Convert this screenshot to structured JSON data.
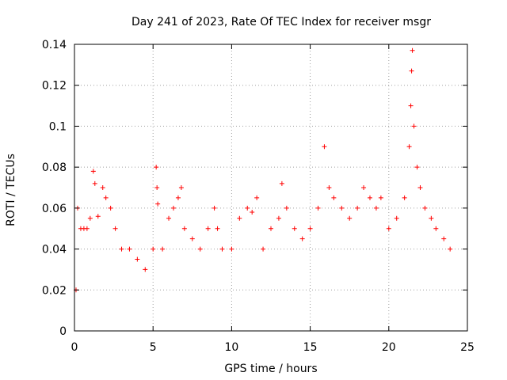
{
  "chart_data": {
    "type": "scatter",
    "title": "Day 241 of 2023, Rate Of TEC Index for receiver msgr",
    "xlabel": "GPS time / hours",
    "ylabel": "ROTI / TECUs",
    "xlim": [
      0,
      25
    ],
    "ylim": [
      0,
      0.14
    ],
    "x_ticks": [
      "0",
      "5",
      "10",
      "15",
      "20",
      "25"
    ],
    "y_ticks": [
      "0",
      "0.02",
      "0.04",
      "0.06",
      "0.08",
      "0.1",
      "0.12",
      "0.14"
    ],
    "grid": true,
    "marker": "+",
    "series": [
      {
        "name": "ROTI",
        "color": "#ff0000",
        "points": [
          [
            0.1,
            0.02
          ],
          [
            0.2,
            0.06
          ],
          [
            0.4,
            0.05
          ],
          [
            0.6,
            0.05
          ],
          [
            0.8,
            0.05
          ],
          [
            1.0,
            0.055
          ],
          [
            1.2,
            0.078
          ],
          [
            1.3,
            0.072
          ],
          [
            1.5,
            0.056
          ],
          [
            1.8,
            0.07
          ],
          [
            2.0,
            0.065
          ],
          [
            2.3,
            0.06
          ],
          [
            2.6,
            0.05
          ],
          [
            3.0,
            0.04
          ],
          [
            3.5,
            0.04
          ],
          [
            4.0,
            0.035
          ],
          [
            4.5,
            0.03
          ],
          [
            5.0,
            0.04
          ],
          [
            5.2,
            0.08
          ],
          [
            5.25,
            0.07
          ],
          [
            5.3,
            0.062
          ],
          [
            5.6,
            0.04
          ],
          [
            6.0,
            0.055
          ],
          [
            6.3,
            0.06
          ],
          [
            6.6,
            0.065
          ],
          [
            6.8,
            0.07
          ],
          [
            7.0,
            0.05
          ],
          [
            7.5,
            0.045
          ],
          [
            8.0,
            0.04
          ],
          [
            8.5,
            0.05
          ],
          [
            8.9,
            0.06
          ],
          [
            9.1,
            0.05
          ],
          [
            9.4,
            0.04
          ],
          [
            10.0,
            0.04
          ],
          [
            10.5,
            0.055
          ],
          [
            11.0,
            0.06
          ],
          [
            11.3,
            0.058
          ],
          [
            11.6,
            0.065
          ],
          [
            12.0,
            0.04
          ],
          [
            12.5,
            0.05
          ],
          [
            13.0,
            0.055
          ],
          [
            13.2,
            0.072
          ],
          [
            13.5,
            0.06
          ],
          [
            14.0,
            0.05
          ],
          [
            14.5,
            0.045
          ],
          [
            15.0,
            0.05
          ],
          [
            15.5,
            0.06
          ],
          [
            15.9,
            0.09
          ],
          [
            16.2,
            0.07
          ],
          [
            16.5,
            0.065
          ],
          [
            17.0,
            0.06
          ],
          [
            17.5,
            0.055
          ],
          [
            18.0,
            0.06
          ],
          [
            18.4,
            0.07
          ],
          [
            18.8,
            0.065
          ],
          [
            19.2,
            0.06
          ],
          [
            19.5,
            0.065
          ],
          [
            20.0,
            0.05
          ],
          [
            20.5,
            0.055
          ],
          [
            21.0,
            0.065
          ],
          [
            21.3,
            0.09
          ],
          [
            21.4,
            0.11
          ],
          [
            21.45,
            0.127
          ],
          [
            21.5,
            0.137
          ],
          [
            21.6,
            0.1
          ],
          [
            21.8,
            0.08
          ],
          [
            22.0,
            0.07
          ],
          [
            22.3,
            0.06
          ],
          [
            22.7,
            0.055
          ],
          [
            23.0,
            0.05
          ],
          [
            23.5,
            0.045
          ],
          [
            23.9,
            0.04
          ]
        ]
      }
    ]
  }
}
